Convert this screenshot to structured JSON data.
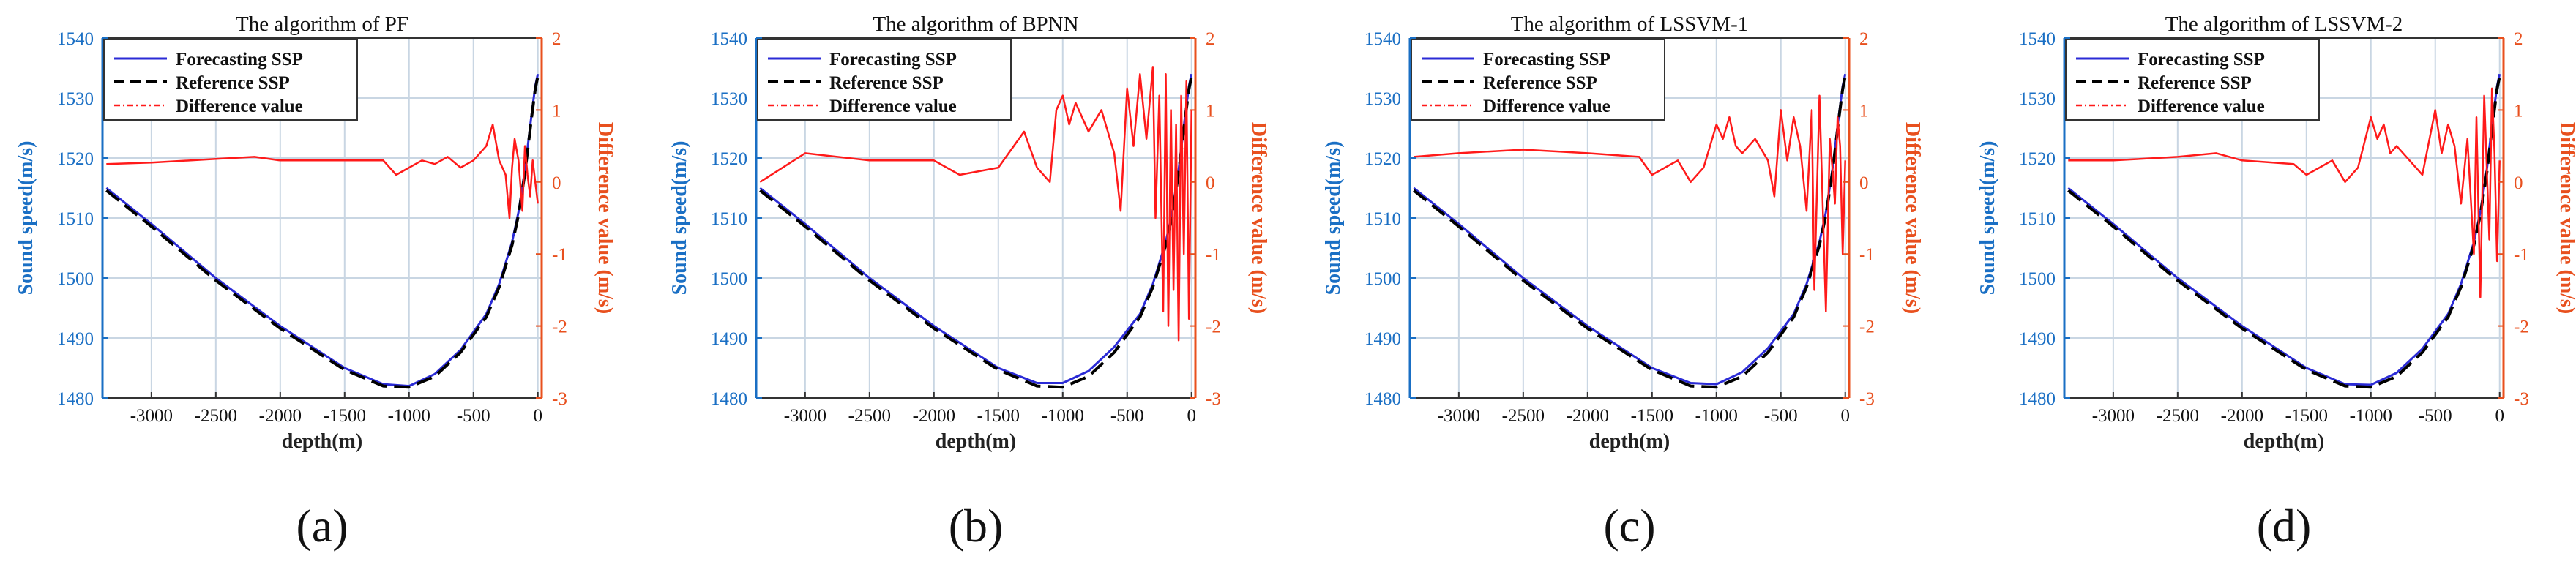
{
  "figure": {
    "panels": [
      "a",
      "b",
      "c",
      "d"
    ]
  },
  "colors": {
    "left_axis": "#1a6fc4",
    "right_axis": "#e8501e",
    "forecast": "#2b2bd6",
    "reference": "#000000",
    "difference": "#ff1a1a",
    "grid": "#c9d6e3"
  },
  "chart_data": [
    {
      "type": "line",
      "panel_label": "(a)",
      "title": "The algorithm of PF",
      "xlabel": "depth(m)",
      "ylabel": "Sound speed(m/s)",
      "y2label": "Difference value (m/s)",
      "xlim": [
        -3380,
        30
      ],
      "ylim": [
        1480,
        1540
      ],
      "y2lim": [
        -3,
        2
      ],
      "xticks": [
        -3000,
        -2500,
        -2000,
        -1500,
        -1000,
        -500,
        0
      ],
      "yticks": [
        1480,
        1490,
        1500,
        1510,
        1520,
        1530,
        1540
      ],
      "y2ticks": [
        -3,
        -2,
        -1,
        0,
        1,
        2
      ],
      "legend": [
        "Forecasting SSP",
        "Reference SSP",
        "Difference value"
      ],
      "series": [
        {
          "name": "Forecasting SSP",
          "axis": "left",
          "x": [
            -3350,
            -3000,
            -2500,
            -2000,
            -1500,
            -1200,
            -1000,
            -800,
            -600,
            -400,
            -300,
            -200,
            -150,
            -100,
            -50,
            -20,
            0
          ],
          "y": [
            1515,
            1509,
            1500,
            1492,
            1485,
            1482.3,
            1482.0,
            1484,
            1488,
            1494,
            1499,
            1506,
            1511,
            1518,
            1527,
            1532,
            1534
          ]
        },
        {
          "name": "Reference SSP",
          "axis": "left",
          "x": [
            -3350,
            -3000,
            -2500,
            -2000,
            -1500,
            -1200,
            -1000,
            -800,
            -600,
            -400,
            -300,
            -200,
            -150,
            -100,
            -50,
            -20,
            0
          ],
          "y": [
            1514.6,
            1508.6,
            1499.6,
            1491.6,
            1484.7,
            1482.0,
            1481.8,
            1483.6,
            1487.6,
            1493.5,
            1498.5,
            1505.5,
            1510.5,
            1517.5,
            1526.5,
            1531.5,
            1533.6
          ]
        },
        {
          "name": "Difference value",
          "axis": "right",
          "x": [
            -3350,
            -3000,
            -2500,
            -2200,
            -2000,
            -1500,
            -1200,
            -1100,
            -1000,
            -900,
            -800,
            -700,
            -600,
            -500,
            -400,
            -350,
            -300,
            -250,
            -220,
            -200,
            -180,
            -150,
            -120,
            -100,
            -80,
            -60,
            -40,
            -20,
            0
          ],
          "y": [
            0.25,
            0.27,
            0.32,
            0.35,
            0.3,
            0.3,
            0.3,
            0.1,
            0.2,
            0.3,
            0.25,
            0.35,
            0.2,
            0.3,
            0.5,
            0.8,
            0.3,
            0.1,
            -0.5,
            0.2,
            0.6,
            0.3,
            -0.4,
            0.5,
            0.1,
            -0.2,
            0.3,
            0.0,
            -0.3
          ]
        }
      ]
    },
    {
      "type": "line",
      "panel_label": "(b)",
      "title": "The algorithm of BPNN",
      "xlabel": "depth(m)",
      "ylabel": "Sound speed(m/s)",
      "y2label": "Difference value (m/s)",
      "xlim": [
        -3380,
        30
      ],
      "ylim": [
        1480,
        1540
      ],
      "y2lim": [
        -3,
        2
      ],
      "xticks": [
        -3000,
        -2500,
        -2000,
        -1500,
        -1000,
        -500,
        0
      ],
      "yticks": [
        1480,
        1490,
        1500,
        1510,
        1520,
        1530,
        1540
      ],
      "y2ticks": [
        -3,
        -2,
        -1,
        0,
        1,
        2
      ],
      "legend": [
        "Forecasting SSP",
        "Reference SSP",
        "Difference value"
      ],
      "series": [
        {
          "name": "Forecasting SSP",
          "axis": "left",
          "x": [
            -3350,
            -3000,
            -2500,
            -2000,
            -1500,
            -1200,
            -1000,
            -800,
            -600,
            -400,
            -300,
            -200,
            -150,
            -100,
            -50,
            -20,
            0
          ],
          "y": [
            1515,
            1509,
            1500,
            1492,
            1485,
            1482.5,
            1482.5,
            1484.5,
            1488.5,
            1494,
            1499,
            1506,
            1511,
            1518,
            1527,
            1532,
            1534
          ]
        },
        {
          "name": "Reference SSP",
          "axis": "left",
          "x": [
            -3350,
            -3000,
            -2500,
            -2000,
            -1500,
            -1200,
            -1000,
            -800,
            -600,
            -400,
            -300,
            -200,
            -150,
            -100,
            -50,
            -20,
            0
          ],
          "y": [
            1514.6,
            1508.6,
            1499.6,
            1491.6,
            1484.7,
            1482.0,
            1481.8,
            1483.6,
            1487.6,
            1493.5,
            1498.5,
            1505.5,
            1510.5,
            1517.5,
            1526.5,
            1531.5,
            1533.6
          ]
        },
        {
          "name": "Difference value",
          "axis": "right",
          "x": [
            -3350,
            -3000,
            -2500,
            -2000,
            -1800,
            -1500,
            -1300,
            -1200,
            -1100,
            -1050,
            -1000,
            -950,
            -900,
            -800,
            -700,
            -600,
            -550,
            -500,
            -450,
            -400,
            -350,
            -300,
            -280,
            -250,
            -220,
            -200,
            -180,
            -160,
            -140,
            -120,
            -100,
            -80,
            -60,
            -40,
            -20,
            0
          ],
          "y": [
            0.0,
            0.4,
            0.3,
            0.3,
            0.1,
            0.2,
            0.7,
            0.2,
            0.0,
            1.0,
            1.2,
            0.8,
            1.1,
            0.7,
            1.0,
            0.4,
            -0.4,
            1.3,
            0.5,
            1.5,
            0.6,
            1.6,
            -0.5,
            1.2,
            -1.8,
            1.5,
            -2.0,
            1.0,
            -1.5,
            0.8,
            -2.2,
            1.2,
            -1.0,
            1.4,
            -1.9,
            1.0
          ]
        }
      ]
    },
    {
      "type": "line",
      "panel_label": "(c)",
      "title": "The algorithm of LSSVM-1",
      "xlabel": "depth(m)",
      "ylabel": "Sound speed(m/s)",
      "y2label": "Difference value (m/s)",
      "xlim": [
        -3380,
        30
      ],
      "ylim": [
        1480,
        1540
      ],
      "y2lim": [
        -3,
        2
      ],
      "xticks": [
        -3000,
        -2500,
        -2000,
        -1500,
        -1000,
        -500,
        0
      ],
      "yticks": [
        1480,
        1490,
        1500,
        1510,
        1520,
        1530,
        1540
      ],
      "y2ticks": [
        -3,
        -2,
        -1,
        0,
        1,
        2
      ],
      "legend": [
        "Forecasting SSP",
        "Reference SSP",
        "Difference value"
      ],
      "series": [
        {
          "name": "Forecasting SSP",
          "axis": "left",
          "x": [
            -3350,
            -3000,
            -2500,
            -2000,
            -1500,
            -1200,
            -1000,
            -800,
            -600,
            -400,
            -300,
            -200,
            -150,
            -100,
            -50,
            -20,
            0
          ],
          "y": [
            1515,
            1509,
            1500,
            1492,
            1485,
            1482.5,
            1482.3,
            1484.3,
            1488.3,
            1494,
            1499,
            1506,
            1511,
            1518,
            1527,
            1532,
            1534
          ]
        },
        {
          "name": "Reference SSP",
          "axis": "left",
          "x": [
            -3350,
            -3000,
            -2500,
            -2000,
            -1500,
            -1200,
            -1000,
            -800,
            -600,
            -400,
            -300,
            -200,
            -150,
            -100,
            -50,
            -20,
            0
          ],
          "y": [
            1514.6,
            1508.6,
            1499.6,
            1491.6,
            1484.7,
            1482.0,
            1481.8,
            1483.6,
            1487.6,
            1493.5,
            1498.5,
            1505.5,
            1510.5,
            1517.5,
            1526.5,
            1531.5,
            1533.6
          ]
        },
        {
          "name": "Difference value",
          "axis": "right",
          "x": [
            -3350,
            -3000,
            -2500,
            -2000,
            -1600,
            -1500,
            -1300,
            -1200,
            -1100,
            -1050,
            -1000,
            -950,
            -900,
            -850,
            -800,
            -700,
            -600,
            -550,
            -500,
            -450,
            -400,
            -350,
            -300,
            -260,
            -240,
            -200,
            -180,
            -150,
            -120,
            -100,
            -80,
            -60,
            -40,
            -20,
            0
          ],
          "y": [
            0.35,
            0.4,
            0.45,
            0.4,
            0.35,
            0.1,
            0.3,
            0.0,
            0.2,
            0.5,
            0.8,
            0.6,
            0.9,
            0.5,
            0.4,
            0.6,
            0.3,
            -0.2,
            1.0,
            0.3,
            0.9,
            0.5,
            -0.4,
            1.0,
            -1.5,
            1.2,
            0.0,
            -1.8,
            0.6,
            0.2,
            -0.3,
            0.9,
            0.5,
            -1.0,
            0.3
          ]
        }
      ]
    },
    {
      "type": "line",
      "panel_label": "(d)",
      "title": "The algorithm of LSSVM-2",
      "xlabel": "depth(m)",
      "ylabel": "Sound speed(m/s)",
      "y2label": "Difference value (m/s)",
      "xlim": [
        -3380,
        30
      ],
      "ylim": [
        1480,
        1540
      ],
      "y2lim": [
        -3,
        2
      ],
      "xticks": [
        -3000,
        -2500,
        -2000,
        -1500,
        -1000,
        -500,
        0
      ],
      "yticks": [
        1480,
        1490,
        1500,
        1510,
        1520,
        1530,
        1540
      ],
      "y2ticks": [
        -3,
        -2,
        -1,
        0,
        1,
        2
      ],
      "legend": [
        "Forecasting SSP",
        "Reference SSP",
        "Difference value"
      ],
      "series": [
        {
          "name": "Forecasting SSP",
          "axis": "left",
          "x": [
            -3350,
            -3000,
            -2500,
            -2000,
            -1500,
            -1200,
            -1000,
            -800,
            -600,
            -400,
            -300,
            -200,
            -150,
            -100,
            -50,
            -20,
            0
          ],
          "y": [
            1515,
            1509,
            1500,
            1492,
            1485,
            1482.3,
            1482.2,
            1484.2,
            1488.2,
            1494,
            1499,
            1506,
            1511,
            1518,
            1527,
            1532,
            1534
          ]
        },
        {
          "name": "Reference SSP",
          "axis": "left",
          "x": [
            -3350,
            -3000,
            -2500,
            -2000,
            -1500,
            -1200,
            -1000,
            -800,
            -600,
            -400,
            -300,
            -200,
            -150,
            -100,
            -50,
            -20,
            0
          ],
          "y": [
            1514.6,
            1508.6,
            1499.6,
            1491.6,
            1484.7,
            1482.0,
            1481.8,
            1483.6,
            1487.6,
            1493.5,
            1498.5,
            1505.5,
            1510.5,
            1517.5,
            1526.5,
            1531.5,
            1533.6
          ]
        },
        {
          "name": "Difference value",
          "axis": "right",
          "x": [
            -3350,
            -3000,
            -2500,
            -2200,
            -2000,
            -1600,
            -1500,
            -1300,
            -1200,
            -1100,
            -1000,
            -950,
            -900,
            -850,
            -800,
            -700,
            -600,
            -500,
            -450,
            -400,
            -350,
            -300,
            -250,
            -200,
            -180,
            -150,
            -120,
            -100,
            -80,
            -60,
            -40,
            -20,
            0
          ],
          "y": [
            0.3,
            0.3,
            0.35,
            0.4,
            0.3,
            0.25,
            0.1,
            0.3,
            0.0,
            0.2,
            0.9,
            0.6,
            0.8,
            0.4,
            0.5,
            0.3,
            0.1,
            1.0,
            0.4,
            0.8,
            0.5,
            -0.3,
            0.6,
            -1.0,
            0.9,
            -1.6,
            1.2,
            0.2,
            -0.8,
            1.3,
            0.4,
            -1.1,
            0.3
          ]
        }
      ]
    }
  ]
}
